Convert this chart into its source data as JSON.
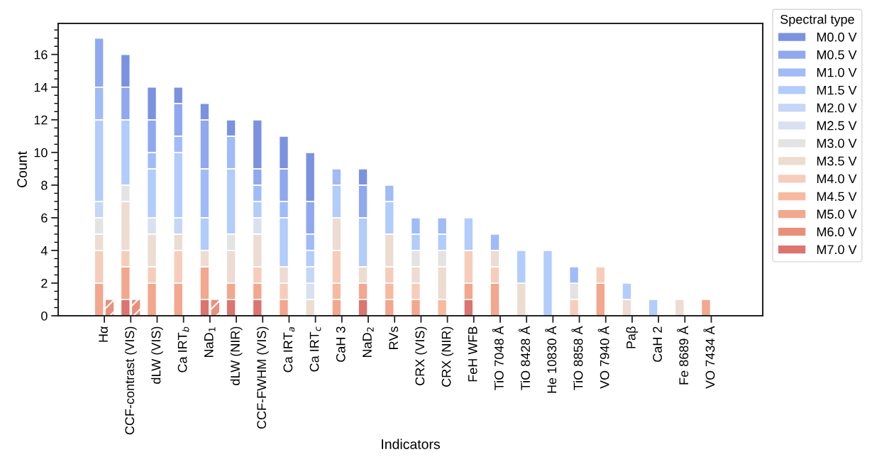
{
  "chart_data": {
    "type": "bar",
    "xlabel": "Indicators",
    "ylabel": "Count",
    "legend_title": "Spectral type",
    "legend": "top right",
    "grid": false,
    "categories": [
      "Hα",
      "CCF-contrast (VIS)",
      "dLW (VIS)",
      "Ca IRT$_{b}$",
      "NaD$_{1}$",
      "dLW (NIR)",
      "CCF-FWHM (VIS)",
      "Ca IRT$_{a}$",
      "Ca IRT$_{c}$",
      "CaH 3",
      "NaD$_{2}$",
      "RVs",
      "CRX (VIS)",
      "CRX (NIR)",
      "FeH WFB",
      "TiO 7048 Å",
      "TiO 8428 Å",
      "He 10830 Å",
      "TiO 8858 Å",
      "VO 7940 Å",
      "Paβ",
      "CaH 2",
      "Fe 8689 Å",
      "VO 7434 Å"
    ],
    "ylim": [
      0,
      17.9
    ],
    "yticks": [
      0,
      2,
      4,
      6,
      8,
      10,
      12,
      14,
      16
    ],
    "series": [
      {
        "name": "M7.0 V",
        "color": "#dc7470",
        "values": [
          null,
          1,
          null,
          null,
          1,
          1,
          1,
          null,
          null,
          null,
          1,
          null,
          null,
          null,
          1,
          null,
          null,
          null,
          null,
          null,
          null,
          null,
          null,
          null
        ],
        "base": [
          null,
          0,
          null,
          null,
          0,
          0,
          0,
          null,
          null,
          null,
          0,
          null,
          null,
          null,
          0,
          null,
          null,
          null,
          null,
          null,
          null,
          null,
          null,
          null
        ]
      },
      {
        "name": "M6.0 V",
        "color": "#e8907c",
        "values": [
          1,
          1,
          null,
          null,
          1,
          null,
          null,
          null,
          null,
          null,
          null,
          null,
          null,
          null,
          null,
          null,
          null,
          null,
          null,
          null,
          null,
          null,
          null,
          null
        ]
      },
      {
        "name": "M5.0 V",
        "color": "#f2a78e",
        "values": [
          2,
          2,
          2,
          2,
          2,
          1,
          1,
          1,
          null,
          1,
          1,
          1,
          1,
          null,
          1,
          2,
          null,
          null,
          null,
          2,
          null,
          null,
          null,
          1
        ],
        "base": [
          0,
          1,
          0,
          0,
          1,
          1,
          1,
          0,
          null,
          0,
          1,
          0,
          0,
          null,
          1,
          0,
          null,
          null,
          null,
          0,
          null,
          null,
          null,
          0
        ]
      },
      {
        "name": "M4.5 V",
        "color": "#f7baa0",
        "values": [
          null,
          null,
          null,
          null,
          null,
          null,
          null,
          null,
          null,
          1,
          null,
          1,
          null,
          1,
          null,
          null,
          null,
          null,
          null,
          null,
          null,
          null,
          null,
          null
        ],
        "base": [
          null,
          null,
          null,
          null,
          null,
          null,
          null,
          null,
          null,
          1,
          null,
          1,
          null,
          0,
          null,
          null,
          null,
          null,
          null,
          null,
          null,
          null,
          null,
          null
        ]
      },
      {
        "name": "M4.0 V",
        "color": "#f6cdbb",
        "values": [
          2,
          1,
          1,
          2,
          null,
          null,
          1,
          1,
          null,
          2,
          null,
          1,
          1,
          null,
          2,
          1,
          null,
          null,
          1,
          1,
          null,
          null,
          null,
          null
        ],
        "base": [
          2,
          3,
          2,
          2,
          null,
          null,
          2,
          1,
          null,
          2,
          null,
          2,
          1,
          null,
          2,
          2,
          null,
          null,
          0,
          2,
          null,
          null,
          null,
          null
        ]
      },
      {
        "name": "M3.5 V",
        "color": "#eddcd2",
        "values": [
          1,
          3,
          2,
          1,
          1,
          2,
          2,
          1,
          1,
          2,
          1,
          2,
          1,
          2,
          null,
          1,
          2,
          null,
          null,
          null,
          1,
          null,
          1,
          null
        ],
        "base": [
          4,
          4,
          3,
          4,
          3,
          2,
          3,
          2,
          0,
          4,
          2,
          3,
          2,
          1,
          null,
          3,
          0,
          null,
          null,
          null,
          0,
          null,
          0,
          null
        ]
      },
      {
        "name": "M3.0 V",
        "color": "#e3e3e3",
        "values": [
          1,
          1,
          null,
          null,
          null,
          1,
          null,
          null,
          null,
          null,
          null,
          null,
          1,
          1,
          null,
          null,
          null,
          null,
          1,
          null,
          null,
          null,
          null,
          null
        ],
        "base": [
          5,
          7,
          null,
          null,
          null,
          4,
          null,
          null,
          null,
          null,
          null,
          null,
          3,
          3,
          null,
          null,
          null,
          null,
          1,
          null,
          null,
          null,
          null,
          null
        ]
      },
      {
        "name": "M2.5 V",
        "color": "#d8e1ef",
        "values": [
          null,
          null,
          1,
          null,
          null,
          null,
          1,
          null,
          1,
          null,
          null,
          null,
          null,
          null,
          null,
          null,
          null,
          null,
          null,
          null,
          null,
          null,
          null,
          null
        ],
        "base": [
          null,
          null,
          5,
          null,
          null,
          null,
          5,
          null,
          1,
          null,
          null,
          null,
          null,
          null,
          null,
          null,
          null,
          null,
          null,
          null,
          null,
          null,
          null,
          null
        ]
      },
      {
        "name": "M2.0 V",
        "color": "#c5d6f6",
        "values": [
          1,
          null,
          null,
          1,
          null,
          null,
          null,
          null,
          1,
          null,
          null,
          null,
          null,
          null,
          null,
          null,
          null,
          null,
          null,
          null,
          null,
          null,
          null,
          null
        ],
        "base": [
          6,
          null,
          null,
          5,
          null,
          null,
          null,
          null,
          2,
          null,
          null,
          null,
          null,
          null,
          null,
          null,
          null,
          null,
          null,
          null,
          null,
          null,
          null,
          null
        ]
      },
      {
        "name": "M1.5 V",
        "color": "#b2ccfb",
        "values": [
          5,
          4,
          3,
          4,
          2,
          4,
          1,
          3,
          1,
          2,
          3,
          2,
          1,
          1,
          2,
          null,
          2,
          4,
          null,
          null,
          1,
          1,
          null,
          null
        ],
        "base": [
          7,
          8,
          6,
          6,
          4,
          5,
          6,
          3,
          3,
          6,
          3,
          5,
          4,
          4,
          4,
          null,
          2,
          0,
          null,
          null,
          1,
          0,
          null,
          null
        ]
      },
      {
        "name": "M1.0 V",
        "color": "#a0bbf7",
        "values": [
          2,
          null,
          1,
          1,
          3,
          2,
          1,
          1,
          1,
          1,
          null,
          1,
          1,
          1,
          null,
          1,
          null,
          null,
          1,
          null,
          null,
          null,
          null,
          null
        ],
        "base": [
          12,
          null,
          9,
          10,
          6,
          9,
          7,
          6,
          4,
          8,
          null,
          7,
          5,
          5,
          null,
          4,
          null,
          null,
          2,
          null,
          null,
          null,
          null,
          null
        ]
      },
      {
        "name": "M0.5 V",
        "color": "#8fa8f0",
        "values": [
          3,
          2,
          2,
          2,
          3,
          null,
          1,
          2,
          2,
          null,
          2,
          null,
          null,
          null,
          null,
          null,
          null,
          null,
          null,
          null,
          null,
          null,
          null,
          null
        ],
        "base": [
          14,
          12,
          10,
          11,
          9,
          null,
          8,
          7,
          5,
          null,
          6,
          null,
          null,
          null,
          null,
          null,
          null,
          null,
          null,
          null,
          null,
          null,
          null,
          null
        ]
      },
      {
        "name": "M0.0 V",
        "color": "#7b92e0",
        "values": [
          null,
          2,
          2,
          1,
          1,
          1,
          3,
          2,
          3,
          null,
          1,
          null,
          null,
          null,
          null,
          null,
          null,
          null,
          null,
          null,
          null,
          null,
          null,
          null
        ],
        "base": [
          null,
          14,
          12,
          13,
          12,
          11,
          9,
          9,
          7,
          null,
          8,
          null,
          null,
          null,
          null,
          null,
          null,
          null,
          null,
          null,
          null,
          null,
          null,
          null
        ]
      }
    ]
  }
}
